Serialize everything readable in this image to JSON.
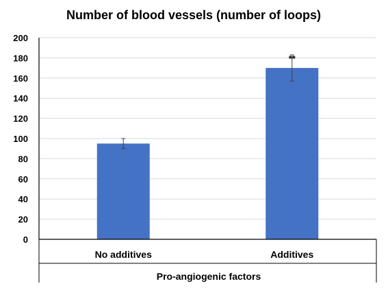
{
  "chart_data": {
    "type": "bar",
    "title": "Number of blood vessels (number of loops)",
    "xlabel": "Pro-angiogenic factors",
    "ylabel": "",
    "categories": [
      "No additives",
      "Additives"
    ],
    "values": [
      95,
      170
    ],
    "errors": [
      5,
      13
    ],
    "annotations": [
      "",
      "**"
    ],
    "ylim": [
      0,
      200
    ],
    "yticks": [
      0,
      20,
      40,
      60,
      80,
      100,
      120,
      140,
      160,
      180,
      200
    ],
    "grid": true,
    "bar_color": "#4472C4"
  }
}
